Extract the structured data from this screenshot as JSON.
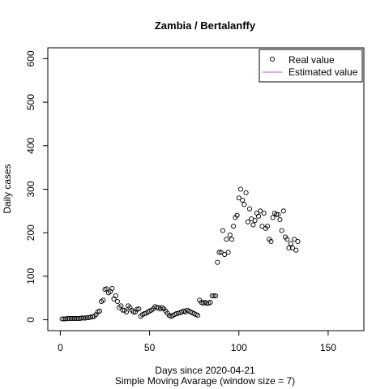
{
  "chart_data": {
    "type": "scatter",
    "title": "Zambia / Bertalanffy",
    "xlabel": "Days since 2020-04-21",
    "subtitle": "Simple Moving Avarage (window size = 7)",
    "ylabel": "Daily cases",
    "xlim": [
      -7,
      170
    ],
    "ylim": [
      -25,
      625
    ],
    "xticks": [
      0,
      50,
      100,
      150
    ],
    "yticks": [
      0,
      100,
      200,
      300,
      400,
      500,
      600
    ],
    "legend_position": "top-right",
    "legend": [
      "Real value",
      "Estimated value"
    ],
    "estimated_color": "#b05fc0",
    "series": [
      {
        "name": "Real value",
        "x": [
          1,
          2,
          3,
          4,
          5,
          6,
          7,
          8,
          9,
          10,
          11,
          12,
          13,
          14,
          15,
          16,
          17,
          18,
          19,
          20,
          21,
          22,
          23,
          24,
          25,
          26,
          27,
          28,
          29,
          30,
          31,
          32,
          33,
          34,
          35,
          36,
          37,
          38,
          39,
          40,
          41,
          42,
          43,
          44,
          45,
          46,
          47,
          48,
          49,
          50,
          51,
          52,
          53,
          54,
          55,
          56,
          57,
          58,
          59,
          60,
          61,
          62,
          63,
          64,
          65,
          66,
          67,
          68,
          69,
          70,
          71,
          72,
          73,
          74,
          75,
          76,
          77,
          78,
          79,
          80,
          81,
          82,
          83,
          84,
          85,
          86,
          87,
          88,
          89,
          90,
          91,
          92,
          93,
          94,
          95,
          96,
          97,
          98,
          99,
          100,
          101,
          102,
          103,
          104,
          105,
          106,
          107,
          108,
          109,
          110,
          111,
          112,
          113,
          114,
          115,
          116,
          117,
          118,
          119,
          120,
          121,
          122,
          123,
          124,
          125,
          126,
          127,
          128,
          129,
          130,
          131,
          132,
          133
        ],
        "y": [
          2,
          2,
          2,
          3,
          3,
          3,
          3,
          3,
          3,
          3,
          3,
          4,
          4,
          4,
          5,
          5,
          6,
          7,
          8,
          12,
          18,
          20,
          42,
          45,
          70,
          71,
          62,
          65,
          72,
          48,
          55,
          42,
          28,
          32,
          22,
          22,
          18,
          32,
          28,
          22,
          18,
          18,
          24,
          25,
          8,
          12,
          14,
          15,
          18,
          20,
          22,
          25,
          30,
          28,
          28,
          25,
          28,
          25,
          20,
          15,
          10,
          8,
          10,
          12,
          14,
          15,
          16,
          18,
          20,
          18,
          22,
          20,
          18,
          16,
          14,
          12,
          10,
          45,
          40,
          38,
          40,
          38,
          38,
          40,
          55,
          55,
          55,
          132,
          155,
          155,
          205,
          150,
          185,
          155,
          195,
          185,
          215,
          235,
          240,
          280,
          300,
          275,
          265,
          292,
          225,
          255,
          232,
          218,
          228,
          245,
          238,
          250,
          215,
          245,
          210,
          215,
          185,
          180,
          235,
          245,
          242,
          242,
          230,
          205,
          250,
          190,
          185,
          165,
          175,
          165,
          185,
          160,
          180
        ]
      },
      {
        "name": "Estimated value",
        "x": [],
        "y": []
      }
    ]
  }
}
